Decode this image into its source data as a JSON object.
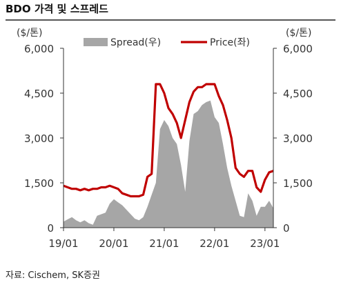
{
  "title": "BDO 가격 및 스프레드",
  "source": "자료: Cischem, SK증권",
  "chart_data": {
    "type": "line",
    "title": "BDO 가격 및 스프레드",
    "left_unit": "($/톤)",
    "right_unit": "($/톤)",
    "ylim": [
      0,
      6000
    ],
    "y_ticks": [
      0,
      1500,
      3000,
      4500,
      6000
    ],
    "y_tick_labels": [
      "0",
      "1,500",
      "3,000",
      "4,500",
      "6,000"
    ],
    "x_range": [
      "2019-01",
      "2023-03"
    ],
    "x_ticks": [
      "19/01",
      "20/01",
      "21/01",
      "22/01",
      "23/01"
    ],
    "legend": {
      "position": "top",
      "entries": [
        "Spread(우)",
        "Price(좌)"
      ]
    },
    "colors": {
      "spread": "#a6a6a6",
      "price": "#c00000",
      "axis": "#333333"
    },
    "series": [
      {
        "name": "Spread(우)",
        "kind": "area",
        "axis": "right",
        "x": [
          "2019-01",
          "2019-02",
          "2019-03",
          "2019-04",
          "2019-05",
          "2019-06",
          "2019-07",
          "2019-08",
          "2019-09",
          "2019-10",
          "2019-11",
          "2019-12",
          "2020-01",
          "2020-02",
          "2020-03",
          "2020-04",
          "2020-05",
          "2020-06",
          "2020-07",
          "2020-08",
          "2020-09",
          "2020-10",
          "2020-11",
          "2020-12",
          "2021-01",
          "2021-02",
          "2021-03",
          "2021-04",
          "2021-05",
          "2021-06",
          "2021-07",
          "2021-08",
          "2021-09",
          "2021-10",
          "2021-11",
          "2021-12",
          "2022-01",
          "2022-02",
          "2022-03",
          "2022-04",
          "2022-05",
          "2022-06",
          "2022-07",
          "2022-08",
          "2022-09",
          "2022-10",
          "2022-11",
          "2022-12",
          "2023-01",
          "2023-02",
          "2023-03"
        ],
        "values": [
          200,
          280,
          350,
          250,
          180,
          250,
          150,
          100,
          400,
          450,
          500,
          800,
          950,
          850,
          750,
          600,
          450,
          300,
          250,
          350,
          700,
          1100,
          1500,
          3300,
          3600,
          3400,
          3000,
          2800,
          2100,
          1200,
          2900,
          3800,
          3900,
          4100,
          4200,
          4250,
          3700,
          3500,
          2800,
          2000,
          1400,
          900,
          400,
          350,
          1150,
          900,
          400,
          700,
          700,
          900,
          650
        ]
      },
      {
        "name": "Price(좌)",
        "kind": "line",
        "axis": "left",
        "x": [
          "2019-01",
          "2019-02",
          "2019-03",
          "2019-04",
          "2019-05",
          "2019-06",
          "2019-07",
          "2019-08",
          "2019-09",
          "2019-10",
          "2019-11",
          "2019-12",
          "2020-01",
          "2020-02",
          "2020-03",
          "2020-04",
          "2020-05",
          "2020-06",
          "2020-07",
          "2020-08",
          "2020-09",
          "2020-10",
          "2020-11",
          "2020-12",
          "2021-01",
          "2021-02",
          "2021-03",
          "2021-04",
          "2021-05",
          "2021-06",
          "2021-07",
          "2021-08",
          "2021-09",
          "2021-10",
          "2021-11",
          "2021-12",
          "2022-01",
          "2022-02",
          "2022-03",
          "2022-04",
          "2022-05",
          "2022-06",
          "2022-07",
          "2022-08",
          "2022-09",
          "2022-10",
          "2022-11",
          "2022-12",
          "2023-01",
          "2023-02",
          "2023-03"
        ],
        "values": [
          1400,
          1350,
          1300,
          1300,
          1250,
          1300,
          1250,
          1300,
          1300,
          1350,
          1350,
          1400,
          1350,
          1300,
          1150,
          1100,
          1050,
          1050,
          1050,
          1100,
          1700,
          1800,
          4800,
          4800,
          4500,
          4000,
          3800,
          3500,
          3000,
          3600,
          4200,
          4550,
          4700,
          4700,
          4800,
          4800,
          4800,
          4400,
          4100,
          3600,
          3000,
          2000,
          1800,
          1700,
          1900,
          1900,
          1350,
          1200,
          1600,
          1850,
          1900
        ]
      }
    ]
  }
}
